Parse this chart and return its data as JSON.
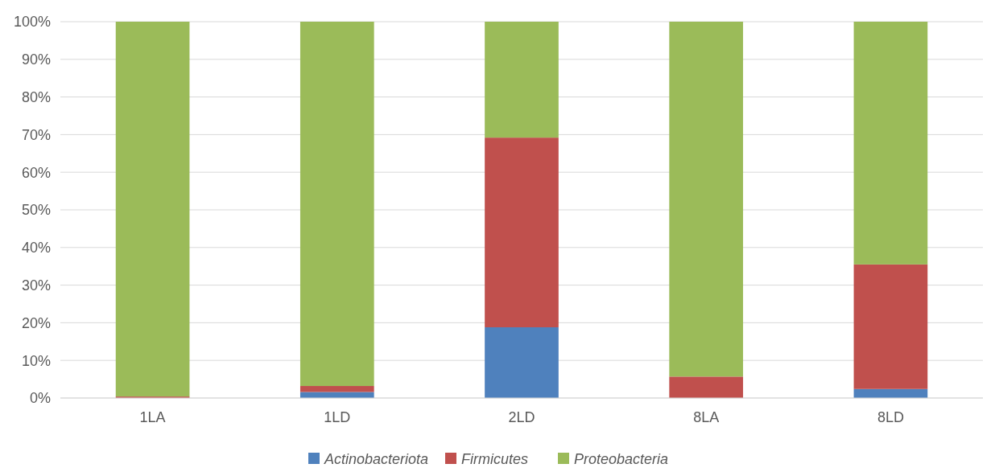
{
  "chart_data": {
    "type": "bar",
    "stacked": true,
    "categories": [
      "1LA",
      "1LD",
      "2LD",
      "8LA",
      "8LD"
    ],
    "series": [
      {
        "name": "Actinobacteriota",
        "color": "#4f81bd",
        "values": [
          0,
          1.6,
          18.8,
          0,
          2.4
        ]
      },
      {
        "name": "Firmicutes",
        "color": "#c0504d",
        "values": [
          0.4,
          1.6,
          50.4,
          5.7,
          33.1
        ]
      },
      {
        "name": "Proteobacteria",
        "color": "#9bbb59",
        "values": [
          99.6,
          96.8,
          30.8,
          94.3,
          64.5
        ]
      }
    ],
    "ylim": [
      0,
      100
    ],
    "yticks": [
      {
        "value": 0,
        "label": "0%"
      },
      {
        "value": 10,
        "label": "10%"
      },
      {
        "value": 20,
        "label": "20%"
      },
      {
        "value": 30,
        "label": "30%"
      },
      {
        "value": 40,
        "label": "40%"
      },
      {
        "value": 50,
        "label": "50%"
      },
      {
        "value": 60,
        "label": "60%"
      },
      {
        "value": 70,
        "label": "70%"
      },
      {
        "value": 80,
        "label": "80%"
      },
      {
        "value": 90,
        "label": "90%"
      },
      {
        "value": 100,
        "label": "100%"
      }
    ],
    "grid": "y",
    "legend": "bottom"
  }
}
